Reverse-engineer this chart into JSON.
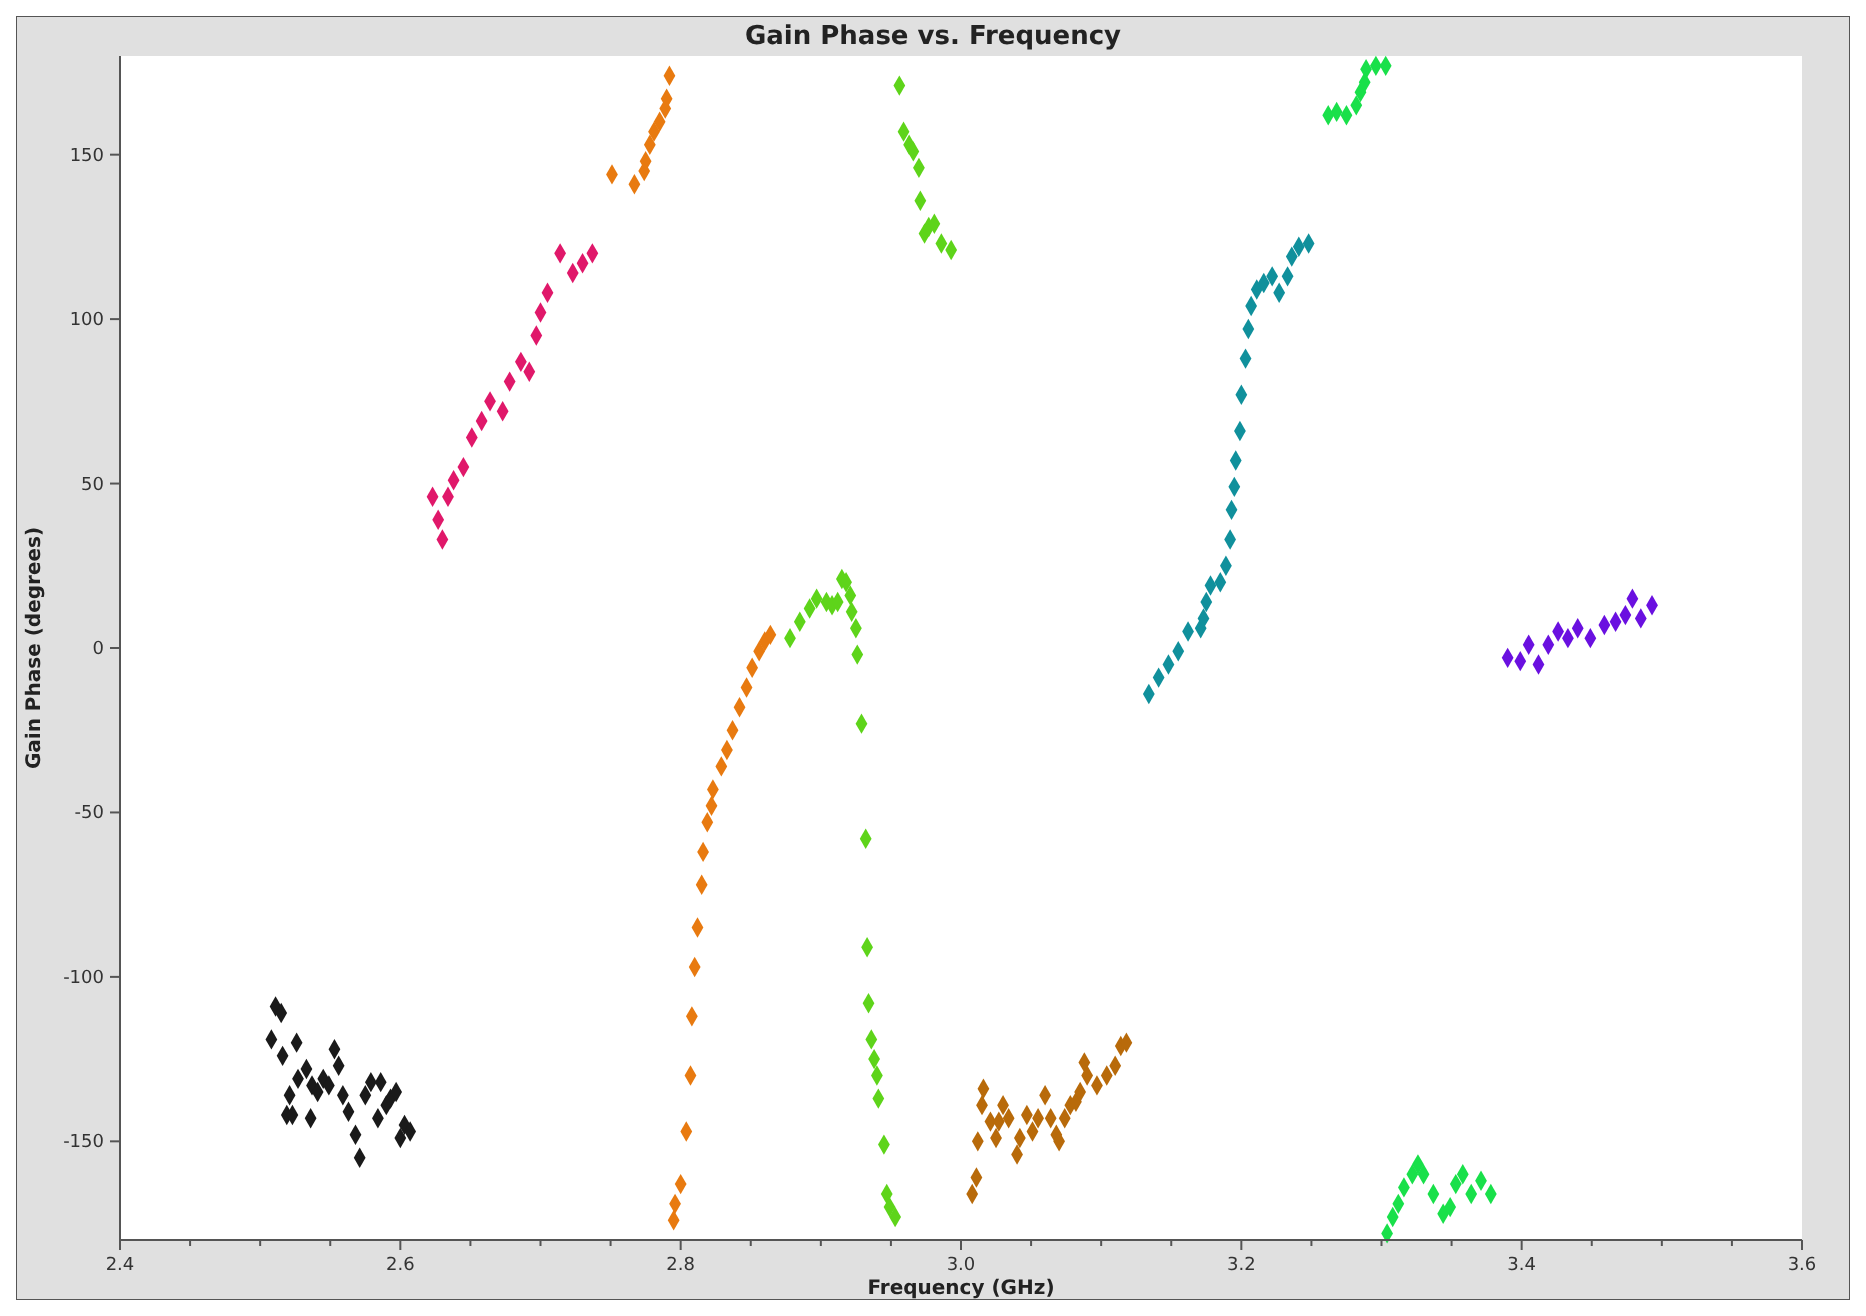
{
  "chart_data": {
    "type": "scatter",
    "title": "Gain Phase vs. Frequency",
    "xlabel": "Frequency (GHz)",
    "ylabel": "Gain Phase (degrees)",
    "marker": "diamond",
    "grid": false,
    "xlim": [
      2.4,
      3.6
    ],
    "ylim": [
      -180,
      180
    ],
    "xticks": [
      2.4,
      {
        "value": 2.45,
        "label": null
      },
      {
        "value": 2.5,
        "label": null
      },
      {
        "value": 2.55,
        "label": null
      },
      2.6,
      {
        "value": 2.65,
        "label": null
      },
      {
        "value": 2.7,
        "label": null
      },
      {
        "value": 2.75,
        "label": null
      },
      2.8,
      {
        "value": 2.85,
        "label": null
      },
      {
        "value": 2.9,
        "label": null
      },
      {
        "value": 2.95,
        "label": null
      },
      {
        "value": 3,
        "label": "3.0"
      },
      {
        "value": 3.05,
        "label": null
      },
      {
        "value": 3.1,
        "label": null
      },
      {
        "value": 3.15,
        "label": null
      },
      3.2,
      {
        "value": 3.25,
        "label": null
      },
      {
        "value": 3.3,
        "label": null
      },
      {
        "value": 3.35,
        "label": null
      },
      3.4,
      {
        "value": 3.45,
        "label": null
      },
      {
        "value": 3.5,
        "label": null
      },
      {
        "value": 3.55,
        "label": null
      },
      3.6
    ],
    "yticks": [
      -150,
      -100,
      -50,
      0,
      50,
      100,
      150
    ],
    "series": [
      {
        "color": "#1a1a1a",
        "x": [
          2.508,
          2.511,
          2.515,
          2.516,
          2.519,
          2.521,
          2.523,
          2.526,
          2.527,
          2.533,
          2.536,
          2.537,
          2.541,
          2.545,
          2.549,
          2.553,
          2.556,
          2.559,
          2.563,
          2.568,
          2.571,
          2.575,
          2.579,
          2.584,
          2.586,
          2.59,
          2.593,
          2.597,
          2.6,
          2.603,
          2.607
        ],
        "values": [
          -119,
          -109,
          -111,
          -124,
          -142,
          -136,
          -142,
          -120,
          -131,
          -128,
          -143,
          -133,
          -135,
          -131,
          -133,
          -122,
          -127,
          -136,
          -141,
          -148,
          -155,
          -136,
          -132,
          -143,
          -132,
          -139,
          -137,
          -135,
          -149,
          -145,
          -147
        ]
      },
      {
        "color": "#e0186a",
        "x": [
          2.623,
          2.627,
          2.63,
          2.634,
          2.638,
          2.645,
          2.651,
          2.658,
          2.664,
          2.673,
          2.678,
          2.686,
          2.692,
          2.697,
          2.7,
          2.705,
          2.714,
          2.723,
          2.73,
          2.737
        ],
        "values": [
          46,
          39,
          33,
          46,
          51,
          55,
          64,
          69,
          75,
          72,
          81,
          87,
          84,
          95,
          102,
          108,
          120,
          114,
          117,
          120
        ]
      },
      {
        "color": "#e87a10",
        "x": [
          2.751,
          2.767,
          2.774,
          2.775,
          2.778,
          2.781,
          2.785,
          2.789,
          2.79,
          2.792,
          2.795,
          2.796,
          2.8,
          2.804,
          2.807,
          2.808,
          2.81,
          2.812,
          2.815,
          2.816,
          2.819,
          2.822,
          2.823,
          2.829,
          2.833,
          2.837,
          2.842,
          2.847,
          2.851,
          2.856,
          2.86,
          2.864
        ],
        "values": [
          144,
          141,
          145,
          148,
          153,
          157,
          160,
          164,
          167,
          174,
          -174,
          -169,
          -163,
          -147,
          -130,
          -112,
          -97,
          -85,
          -72,
          -62,
          -53,
          -48,
          -43,
          -36,
          -31,
          -25,
          -18,
          -12,
          -6,
          -1,
          2,
          4
        ]
      },
      {
        "color": "#5ed41a",
        "x": [
          2.878,
          2.885,
          2.892,
          2.897,
          2.904,
          2.908,
          2.912,
          2.915,
          2.918,
          2.921,
          2.922,
          2.925,
          2.926,
          2.929,
          2.932,
          2.933,
          2.934,
          2.936,
          2.938,
          2.94,
          2.941,
          2.945,
          2.947,
          2.949,
          2.953,
          2.956,
          2.959,
          2.963,
          2.966,
          2.97,
          2.971,
          2.974,
          2.977,
          2.981,
          2.986,
          2.993
        ],
        "values": [
          3,
          8,
          12,
          15,
          14,
          13,
          14,
          21,
          20,
          16,
          11,
          6,
          -2,
          -23,
          -58,
          -91,
          -108,
          -119,
          -125,
          -130,
          -137,
          -151,
          -166,
          -170,
          -173,
          171,
          157,
          153,
          151,
          146,
          136,
          126,
          128,
          129,
          123,
          121
        ]
      },
      {
        "color": "#b86a0a",
        "x": [
          3.008,
          3.011,
          3.012,
          3.015,
          3.016,
          3.021,
          3.025,
          3.027,
          3.03,
          3.034,
          3.04,
          3.042,
          3.047,
          3.051,
          3.055,
          3.06,
          3.064,
          3.068,
          3.07,
          3.074,
          3.078,
          3.082,
          3.085,
          3.088,
          3.09,
          3.097,
          3.104,
          3.11,
          3.114,
          3.118
        ],
        "values": [
          -166,
          -161,
          -150,
          -139,
          -134,
          -144,
          -149,
          -144,
          -139,
          -143,
          -154,
          -149,
          -142,
          -147,
          -143,
          -136,
          -143,
          -148,
          -150,
          -143,
          -139,
          -138,
          -135,
          -126,
          -130,
          -133,
          -130,
          -127,
          -121,
          -120
        ]
      },
      {
        "color": "#10909c",
        "x": [
          3.134,
          3.141,
          3.148,
          3.155,
          3.162,
          3.171,
          3.173,
          3.175,
          3.178,
          3.185,
          3.189,
          3.192,
          3.193,
          3.195,
          3.196,
          3.199,
          3.2,
          3.203,
          3.205,
          3.207,
          3.211,
          3.216,
          3.222,
          3.227,
          3.233,
          3.236,
          3.241,
          3.248
        ],
        "values": [
          -14,
          -9,
          -5,
          -1,
          5,
          6,
          9,
          14,
          19,
          20,
          25,
          33,
          42,
          49,
          57,
          66,
          77,
          88,
          97,
          104,
          109,
          111,
          113,
          108,
          113,
          119,
          122,
          123
        ]
      },
      {
        "color": "#19e04a",
        "x": [
          3.262,
          3.268,
          3.275,
          3.282,
          3.285,
          3.288,
          3.289,
          3.296,
          3.303,
          3.304,
          3.308,
          3.312,
          3.316,
          3.322,
          3.326,
          3.33,
          3.337,
          3.344,
          3.349,
          3.353,
          3.358,
          3.364,
          3.371,
          3.378
        ],
        "values": [
          162,
          163,
          162,
          165,
          169,
          172,
          176,
          177,
          177,
          -178,
          -173,
          -169,
          -164,
          -160,
          -157,
          -160,
          -166,
          -172,
          -170,
          -163,
          -160,
          -166,
          -162,
          -166
        ]
      },
      {
        "color": "#6a10e0",
        "x": [
          3.39,
          3.399,
          3.405,
          3.412,
          3.419,
          3.426,
          3.433,
          3.44,
          3.449,
          3.459,
          3.467,
          3.474,
          3.479,
          3.485,
          3.493
        ],
        "values": [
          -3,
          -4,
          1,
          -5,
          1,
          5,
          3,
          6,
          3,
          7,
          8,
          10,
          15,
          9,
          13
        ]
      }
    ]
  }
}
